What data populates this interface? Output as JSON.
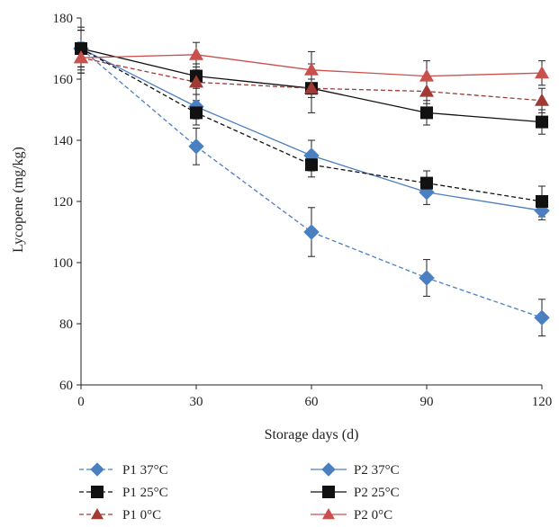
{
  "chart_data": {
    "type": "line",
    "xlabel": "Storage days (d)",
    "ylabel": "Lycopene (mg/kg)",
    "x": [
      0,
      30,
      60,
      90,
      120
    ],
    "x_ticks": [
      "0",
      "30",
      "60",
      "90",
      "120"
    ],
    "y_ticks": [
      "60",
      "80",
      "100",
      "120",
      "140",
      "160",
      "180"
    ],
    "xlim": [
      0,
      120
    ],
    "ylim": [
      60,
      180
    ],
    "grid": false,
    "legend_position": "bottom",
    "series": [
      {
        "name": "P1 37°C",
        "values": [
          170,
          138,
          110,
          95,
          82
        ],
        "err": [
          7,
          6,
          8,
          6,
          6
        ],
        "color": "#4a7fc1",
        "marker": "diamond",
        "dashed": true
      },
      {
        "name": "P2 37°C",
        "values": [
          170,
          151,
          135,
          123,
          117
        ],
        "err": [
          6,
          4,
          5,
          4,
          3
        ],
        "color": "#4a7fc1",
        "marker": "diamond",
        "dashed": false
      },
      {
        "name": "P1 25°C",
        "values": [
          170,
          149,
          132,
          126,
          120
        ],
        "err": [
          6,
          4,
          4,
          4,
          5
        ],
        "color": "#111111",
        "marker": "square",
        "dashed": true
      },
      {
        "name": "P2 25°C",
        "values": [
          170,
          161,
          157,
          149,
          146
        ],
        "err": [
          6,
          4,
          8,
          4,
          4
        ],
        "color": "#111111",
        "marker": "square",
        "dashed": false
      },
      {
        "name": "P1 0°C",
        "values": [
          167,
          159,
          157,
          156,
          153
        ],
        "err": [
          5,
          4,
          3,
          4,
          4
        ],
        "color": "#a03a35",
        "marker": "triangle",
        "dashed": true
      },
      {
        "name": "P2 0°C",
        "values": [
          167,
          168,
          163,
          161,
          162
        ],
        "err": [
          5,
          4,
          6,
          5,
          4
        ],
        "color": "#c9504c",
        "marker": "triangle",
        "dashed": false
      }
    ]
  }
}
